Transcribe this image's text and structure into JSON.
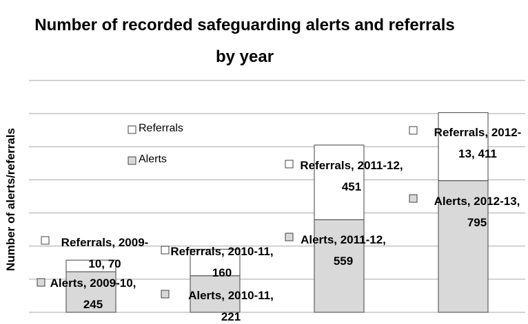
{
  "chart_data": {
    "type": "stacked_bar",
    "title": "Number of recorded safeguarding alerts and referrals by year",
    "y_label": "Number of alerts/referrals",
    "categories": [
      "2009-10",
      "2010-11",
      "2011-12",
      "2012-13"
    ],
    "series": [
      {
        "name": "Alerts",
        "color": "#d9d9d9",
        "values": [
          245,
          221,
          559,
          795
        ],
        "value_labels": [
          "Alerts, 2009-10, 245",
          "Alerts, 2010-11, 221",
          "Alerts, 2011-12, 559",
          "Alerts, 2012-13, 795"
        ]
      },
      {
        "name": "Referrals",
        "color": "#ffffff",
        "values": [
          70,
          160,
          451,
          411
        ],
        "value_labels": [
          "Referrals, 2009-10, 70",
          "Referrals, 2010-11, 160",
          "Referrals, 2011-12, 451",
          "Referrals, 2012-13, 411"
        ]
      }
    ],
    "ylim": [
      0,
      1400
    ],
    "yticks": [
      0,
      200,
      400,
      600,
      800,
      1000,
      1200,
      1400
    ],
    "grid": true
  }
}
